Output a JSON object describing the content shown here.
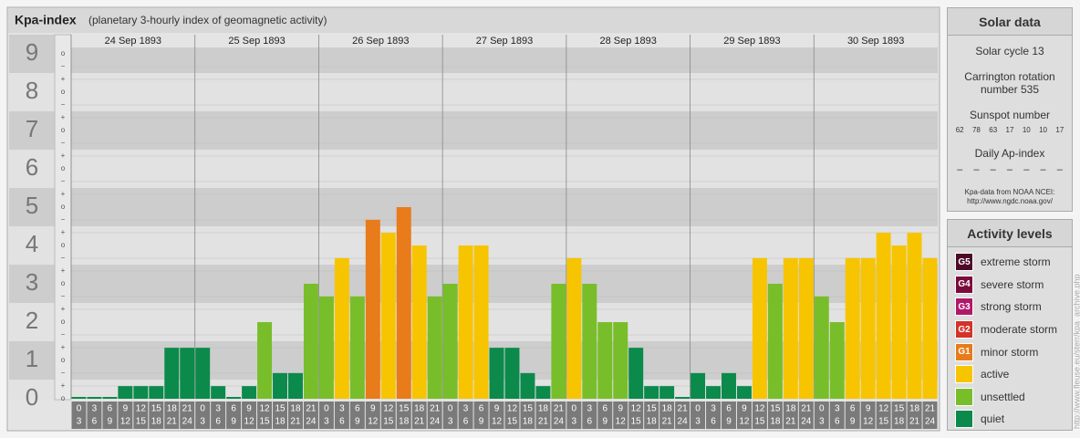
{
  "header": {
    "title": "Kpa-index",
    "subtitle": "(planetary 3-hourly index of geomagnetic activity)"
  },
  "chart_data": {
    "type": "bar",
    "days": [
      "24 Sep 1893",
      "25 Sep 1893",
      "26 Sep 1893",
      "27 Sep 1893",
      "28 Sep 1893",
      "29 Sep 1893",
      "30 Sep 1893"
    ],
    "hours": [
      [
        0,
        3
      ],
      [
        3,
        6
      ],
      [
        6,
        9
      ],
      [
        9,
        12
      ],
      [
        12,
        15
      ],
      [
        15,
        18
      ],
      [
        18,
        21
      ],
      [
        21,
        24
      ]
    ],
    "values": [
      0,
      0,
      0,
      0.33,
      0.33,
      0.33,
      1.33,
      1.33,
      1.33,
      0.33,
      0,
      0.33,
      2,
      0.67,
      0.67,
      3,
      2.67,
      3.67,
      2.67,
      4.67,
      4.33,
      5,
      4,
      2.67,
      3,
      4,
      4,
      1.33,
      1.33,
      0.67,
      0.33,
      3,
      3.67,
      3,
      2,
      2,
      1.33,
      0.33,
      0.33,
      0,
      0.67,
      0.33,
      0.67,
      0.33,
      3.67,
      3,
      3.67,
      3.67,
      2.67,
      2,
      3.67,
      3.67,
      4.33,
      4,
      4.33,
      3.67
    ],
    "colors": [
      "#0b8a4b",
      "#0b8a4b",
      "#0b8a4b",
      "#0b8a4b",
      "#0b8a4b",
      "#0b8a4b",
      "#0b8a4b",
      "#0b8a4b",
      "#0b8a4b",
      "#0b8a4b",
      "#0b8a4b",
      "#0b8a4b",
      "#78be2a",
      "#0b8a4b",
      "#0b8a4b",
      "#78be2a",
      "#78be2a",
      "#f7c400",
      "#78be2a",
      "#e87b1a",
      "#f7c400",
      "#e87b1a",
      "#f7c400",
      "#78be2a",
      "#78be2a",
      "#f7c400",
      "#f7c400",
      "#0b8a4b",
      "#0b8a4b",
      "#0b8a4b",
      "#0b8a4b",
      "#78be2a",
      "#f7c400",
      "#78be2a",
      "#78be2a",
      "#78be2a",
      "#0b8a4b",
      "#0b8a4b",
      "#0b8a4b",
      "#0b8a4b",
      "#0b8a4b",
      "#0b8a4b",
      "#0b8a4b",
      "#0b8a4b",
      "#f7c400",
      "#78be2a",
      "#f7c400",
      "#f7c400",
      "#78be2a",
      "#78be2a",
      "#f7c400",
      "#f7c400",
      "#f7c400",
      "#f7c400",
      "#f7c400",
      "#f7c400"
    ],
    "ylim": [
      0,
      9
    ],
    "yticks": [
      0,
      1,
      2,
      3,
      4,
      5,
      6,
      7,
      8,
      9
    ],
    "subtick_labels": [
      "o",
      "+",
      "−"
    ]
  },
  "solar": {
    "title": "Solar data",
    "cycle": "Solar cycle 13",
    "carrington": [
      "Carrington rotation",
      "number 535"
    ],
    "sunspot_title": "Sunspot number",
    "sunspots": [
      62,
      78,
      63,
      17,
      10,
      10,
      17
    ],
    "ap_title": "Daily Ap-index",
    "ap": [
      "–",
      "–",
      "–",
      "–",
      "–",
      "–",
      "–"
    ],
    "source": [
      "Kpa-data from NOAA NCEI:",
      "http://www.ngdc.noaa.gov/"
    ]
  },
  "levels": {
    "title": "Activity levels",
    "items": [
      {
        "badge": "G5",
        "name": "extreme storm",
        "color": "#4d0a28"
      },
      {
        "badge": "G4",
        "name": "severe storm",
        "color": "#7a0c3c"
      },
      {
        "badge": "G3",
        "name": "strong storm",
        "color": "#b0186a"
      },
      {
        "badge": "G2",
        "name": "moderate storm",
        "color": "#d4322a"
      },
      {
        "badge": "G1",
        "name": "minor storm",
        "color": "#e87b1a"
      },
      {
        "name": "active",
        "color": "#f7c400"
      },
      {
        "name": "unsettled",
        "color": "#78be2a"
      },
      {
        "name": "quiet",
        "color": "#0b8a4b"
      }
    ]
  },
  "credit": "http://www.fleuse.eu/sterr/kpa_archive.php"
}
